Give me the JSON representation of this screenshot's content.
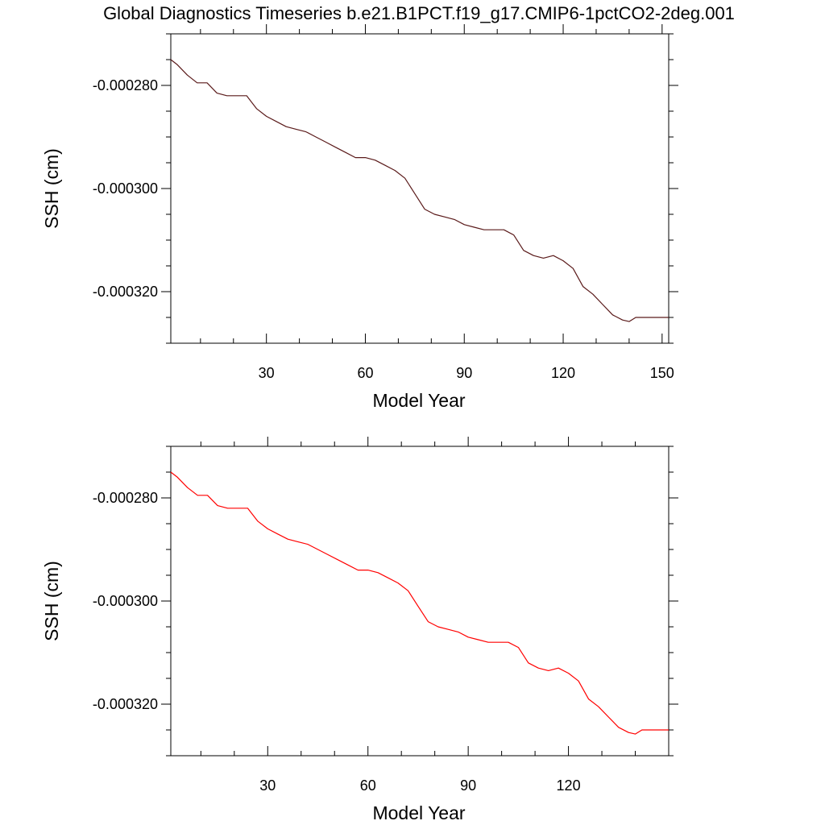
{
  "title": "Global Diagnostics Timeseries b.e21.B1PCT.f19_g17.CMIP6-1pctCO2-2deg.001",
  "chart_data": [
    {
      "type": "line",
      "xlabel": "Model Year",
      "ylabel": "SSH (cm)",
      "xlim": [
        1,
        152
      ],
      "ylim": [
        -0.00033,
        -0.00027
      ],
      "xticks": [
        30,
        60,
        90,
        120,
        150
      ],
      "xtick_labels": [
        "30",
        "60",
        "90",
        "120",
        "150"
      ],
      "yticks": [
        -0.00028,
        -0.0003,
        -0.00032
      ],
      "ytick_labels": [
        "-0.000280",
        "-0.000300",
        "-0.000320"
      ],
      "series": [
        {
          "resolution": "monthly",
          "color": "#5a1a1a",
          "x": [
            1,
            3,
            6,
            9,
            12,
            15,
            18,
            21,
            24,
            27,
            30,
            33,
            36,
            39,
            42,
            45,
            48,
            51,
            54,
            57,
            60,
            63,
            66,
            69,
            72,
            75,
            78,
            81,
            84,
            87,
            90,
            93,
            96,
            99,
            102,
            105,
            108,
            111,
            114,
            117,
            120,
            123,
            126,
            129,
            132,
            135,
            138,
            140,
            142,
            145,
            148,
            152
          ],
          "y": [
            -0.000275,
            -0.000276,
            -0.000278,
            -0.0002795,
            -0.0002795,
            -0.0002815,
            -0.000282,
            -0.000282,
            -0.000282,
            -0.0002845,
            -0.000286,
            -0.000287,
            -0.000288,
            -0.0002885,
            -0.000289,
            -0.00029,
            -0.000291,
            -0.000292,
            -0.000293,
            -0.000294,
            -0.000294,
            -0.0002945,
            -0.0002955,
            -0.0002965,
            -0.000298,
            -0.000301,
            -0.000304,
            -0.000305,
            -0.0003055,
            -0.000306,
            -0.000307,
            -0.0003075,
            -0.000308,
            -0.000308,
            -0.000308,
            -0.000309,
            -0.000312,
            -0.000313,
            -0.0003135,
            -0.000313,
            -0.000314,
            -0.0003155,
            -0.000319,
            -0.0003205,
            -0.0003225,
            -0.0003245,
            -0.0003255,
            -0.0003258,
            -0.000325,
            -0.000325,
            -0.000325,
            -0.000325
          ]
        }
      ]
    },
    {
      "type": "line",
      "xlabel": "Model Year",
      "ylabel": "SSH (cm)",
      "xlim": [
        1,
        150
      ],
      "ylim": [
        -0.00033,
        -0.00027
      ],
      "xticks": [
        30,
        60,
        90,
        120
      ],
      "xtick_labels": [
        "30",
        "60",
        "90",
        "120"
      ],
      "yticks": [
        -0.00028,
        -0.0003,
        -0.00032
      ],
      "ytick_labels": [
        "-0.000280",
        "-0.000300",
        "-0.000320"
      ],
      "series": [
        {
          "resolution": "annual",
          "color": "#ff0000",
          "x": [
            1,
            3,
            6,
            9,
            12,
            15,
            18,
            21,
            24,
            27,
            30,
            33,
            36,
            39,
            42,
            45,
            48,
            51,
            54,
            57,
            60,
            63,
            66,
            69,
            72,
            75,
            78,
            81,
            84,
            87,
            90,
            93,
            96,
            99,
            102,
            105,
            108,
            111,
            114,
            117,
            120,
            123,
            126,
            129,
            132,
            135,
            138,
            140,
            142,
            145,
            148,
            150
          ],
          "y": [
            -0.000275,
            -0.000276,
            -0.000278,
            -0.0002795,
            -0.0002795,
            -0.0002815,
            -0.000282,
            -0.000282,
            -0.000282,
            -0.0002845,
            -0.000286,
            -0.000287,
            -0.000288,
            -0.0002885,
            -0.000289,
            -0.00029,
            -0.000291,
            -0.000292,
            -0.000293,
            -0.000294,
            -0.000294,
            -0.0002945,
            -0.0002955,
            -0.0002965,
            -0.000298,
            -0.000301,
            -0.000304,
            -0.000305,
            -0.0003055,
            -0.000306,
            -0.000307,
            -0.0003075,
            -0.000308,
            -0.000308,
            -0.000308,
            -0.000309,
            -0.000312,
            -0.000313,
            -0.0003135,
            -0.000313,
            -0.000314,
            -0.0003155,
            -0.000319,
            -0.0003205,
            -0.0003225,
            -0.0003245,
            -0.0003255,
            -0.0003258,
            -0.000325,
            -0.000325,
            -0.000325,
            -0.000325
          ]
        }
      ]
    }
  ]
}
